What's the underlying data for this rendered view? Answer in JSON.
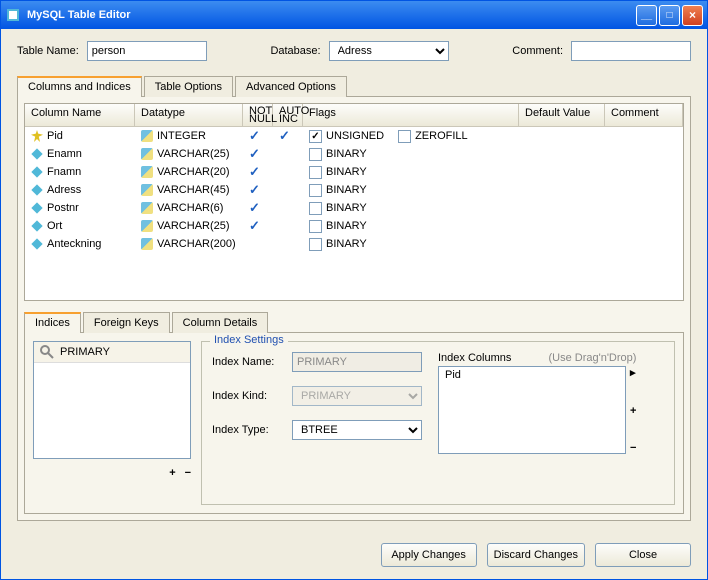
{
  "window": {
    "title": "MySQL Table Editor"
  },
  "header": {
    "table_name_label": "Table Name:",
    "table_name_value": "person",
    "database_label": "Database:",
    "database_value": "Adress",
    "comment_label": "Comment:",
    "comment_value": ""
  },
  "tabs": {
    "columns_indices": "Columns and Indices",
    "table_options": "Table Options",
    "advanced_options": "Advanced Options"
  },
  "grid": {
    "headers": {
      "column_name": "Column Name",
      "datatype": "Datatype",
      "not_null": "NOT NULL",
      "auto_inc": "AUTO INC",
      "flags": "Flags",
      "default_value": "Default Value",
      "comment": "Comment"
    },
    "flag_labels": {
      "unsigned": "UNSIGNED",
      "zerofill": "ZEROFILL",
      "binary": "BINARY"
    },
    "rows": [
      {
        "name": "Pid",
        "datatype": "INTEGER",
        "not_null": true,
        "auto_inc": true,
        "key": true,
        "flags_kind": "int"
      },
      {
        "name": "Enamn",
        "datatype": "VARCHAR(25)",
        "not_null": true,
        "auto_inc": false,
        "key": false,
        "flags_kind": "bin"
      },
      {
        "name": "Fnamn",
        "datatype": "VARCHAR(20)",
        "not_null": true,
        "auto_inc": false,
        "key": false,
        "flags_kind": "bin"
      },
      {
        "name": "Adress",
        "datatype": "VARCHAR(45)",
        "not_null": true,
        "auto_inc": false,
        "key": false,
        "flags_kind": "bin"
      },
      {
        "name": "Postnr",
        "datatype": "VARCHAR(6)",
        "not_null": true,
        "auto_inc": false,
        "key": false,
        "flags_kind": "bin"
      },
      {
        "name": "Ort",
        "datatype": "VARCHAR(25)",
        "not_null": true,
        "auto_inc": false,
        "key": false,
        "flags_kind": "bin"
      },
      {
        "name": "Anteckning",
        "datatype": "VARCHAR(200)",
        "not_null": false,
        "auto_inc": false,
        "key": false,
        "flags_kind": "bin"
      }
    ]
  },
  "subtabs": {
    "indices": "Indices",
    "foreign_keys": "Foreign Keys",
    "column_details": "Column Details"
  },
  "index_list": {
    "items": [
      "PRIMARY"
    ]
  },
  "index_settings": {
    "title": "Index Settings",
    "name_label": "Index Name:",
    "name_value": "PRIMARY",
    "kind_label": "Index Kind:",
    "kind_value": "PRIMARY",
    "type_label": "Index Type:",
    "type_value": "BTREE",
    "columns_label": "Index Columns",
    "hint": "(Use Drag'n'Drop)",
    "columns": [
      "Pid"
    ]
  },
  "buttons": {
    "apply": "Apply Changes",
    "discard": "Discard Changes",
    "close": "Close"
  }
}
